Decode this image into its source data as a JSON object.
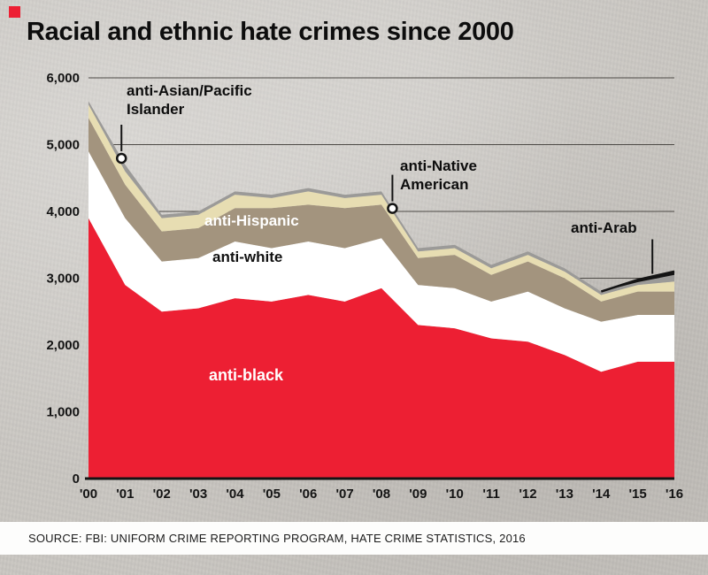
{
  "page": {
    "title": "Racial and ethnic hate crimes since 2000"
  },
  "source": {
    "text": "SOURCE: FBI: UNIFORM CRIME REPORTING PROGRAM, HATE CRIME STATISTICS, 2016"
  },
  "chart_data": {
    "type": "area",
    "stacked": true,
    "title": "Racial and ethnic hate crimes since 2000",
    "x_labels": [
      "'00",
      "'01",
      "'02",
      "'03",
      "'04",
      "'05",
      "'06",
      "'07",
      "'08",
      "'09",
      "'10",
      "'11",
      "'12",
      "'13",
      "'14",
      "'15",
      "'16"
    ],
    "years": [
      2000,
      2001,
      2002,
      2003,
      2004,
      2005,
      2006,
      2007,
      2008,
      2009,
      2010,
      2011,
      2012,
      2013,
      2014,
      2015,
      2016
    ],
    "ylim": [
      0,
      6000
    ],
    "ytick_step": 1000,
    "ytick_labels": [
      "0",
      "1,000",
      "2,000",
      "3,000",
      "4,000",
      "5,000",
      "6,000"
    ],
    "grid": "horizontal",
    "legend_position": "in-chart-labels",
    "series": [
      {
        "name": "anti-black",
        "color": "#ed1f33",
        "values": [
          3900,
          2900,
          2500,
          2550,
          2700,
          2650,
          2750,
          2650,
          2850,
          2300,
          2250,
          2100,
          2050,
          1850,
          1600,
          1750,
          1750
        ]
      },
      {
        "name": "anti-white",
        "color": "#ffffff",
        "values": [
          1000,
          1000,
          750,
          750,
          850,
          800,
          800,
          800,
          750,
          600,
          600,
          550,
          750,
          700,
          750,
          700,
          700
        ]
      },
      {
        "name": "anti-Hispanic",
        "color": "#a3947e",
        "values": [
          500,
          500,
          450,
          450,
          500,
          600,
          550,
          600,
          500,
          400,
          500,
          400,
          450,
          450,
          300,
          350,
          350
        ]
      },
      {
        "name": "anti-Asian/Pacific Islander",
        "color": "#e7ddb2",
        "values": [
          200,
          200,
          200,
          200,
          200,
          150,
          200,
          150,
          150,
          100,
          100,
          100,
          100,
          100,
          100,
          100,
          150
        ]
      },
      {
        "name": "anti-Native American",
        "color": "#9b9a98",
        "values": [
          50,
          100,
          50,
          50,
          50,
          50,
          50,
          50,
          50,
          50,
          50,
          50,
          50,
          50,
          50,
          40,
          100
        ]
      },
      {
        "name": "anti-Arab",
        "color": "#141414",
        "values": [
          0,
          0,
          0,
          0,
          0,
          0,
          0,
          0,
          0,
          0,
          0,
          0,
          0,
          0,
          0,
          37,
          51
        ]
      }
    ],
    "annotations": [
      {
        "label": "anti-Asian/Pacific Islander",
        "display": "anti-Asian/Pacific\nIslander",
        "year": 0.9,
        "marker": "dot"
      },
      {
        "label": "anti-Native American",
        "display": "anti-Native\nAmerican",
        "year": 8.3,
        "marker": "dot"
      },
      {
        "label": "anti-Arab",
        "display": "anti-Arab",
        "year": 15.4,
        "marker": "line"
      }
    ]
  }
}
